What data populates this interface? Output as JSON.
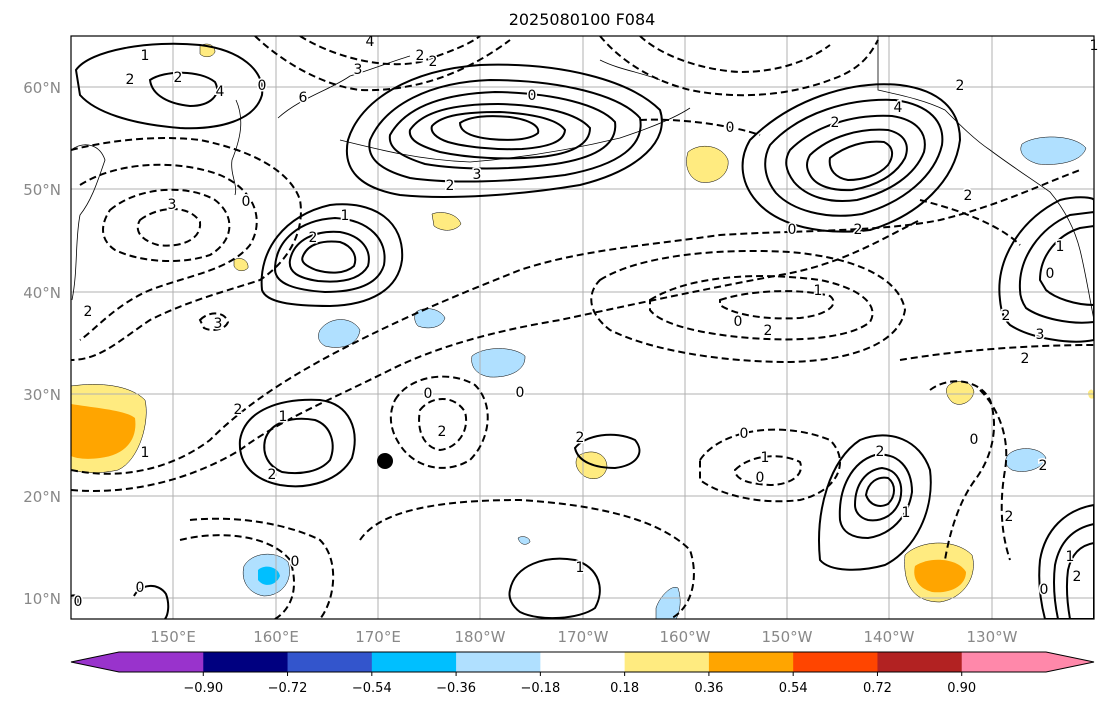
{
  "title": "2025080100 F084",
  "map": {
    "lat_labels": [
      "60°N",
      "50°N",
      "40°N",
      "30°N",
      "20°N",
      "10°N"
    ],
    "lon_labels": [
      "150°E",
      "160°E",
      "170°E",
      "180°W",
      "170°W",
      "160°W",
      "150°W",
      "140°W",
      "130°W"
    ],
    "contour_labels": [
      "1",
      "2",
      "2",
      "4",
      "4",
      "3",
      "2",
      "0",
      "2",
      "6",
      "0",
      "3",
      "2",
      "0",
      "1",
      "2",
      "2",
      "3",
      "2",
      "1",
      "2",
      "0",
      "0",
      "1",
      "2",
      "2",
      "2",
      "1",
      "0",
      "0",
      "0",
      "0",
      "2",
      "1",
      "0",
      "2",
      "2",
      "3",
      "2",
      "2",
      "0",
      "0",
      "1",
      "2",
      "4",
      "3",
      "1",
      "0",
      "2",
      "1",
      "2",
      "1",
      "0",
      "2",
      "2",
      "0",
      "0",
      "1"
    ],
    "marker": "black-dot"
  },
  "colorbar": {
    "tick_labels": [
      "−0.90",
      "−0.72",
      "−0.54",
      "−0.36",
      "−0.18",
      "0.18",
      "0.36",
      "0.54",
      "0.72",
      "0.90"
    ],
    "colors": [
      "#9933cc",
      "#000080",
      "#3355cc",
      "#00bfff",
      "#b0e0ff",
      "#ffffff",
      "#ffeb80",
      "#ffa500",
      "#ff4500",
      "#b22222",
      "#ff88aa"
    ]
  }
}
